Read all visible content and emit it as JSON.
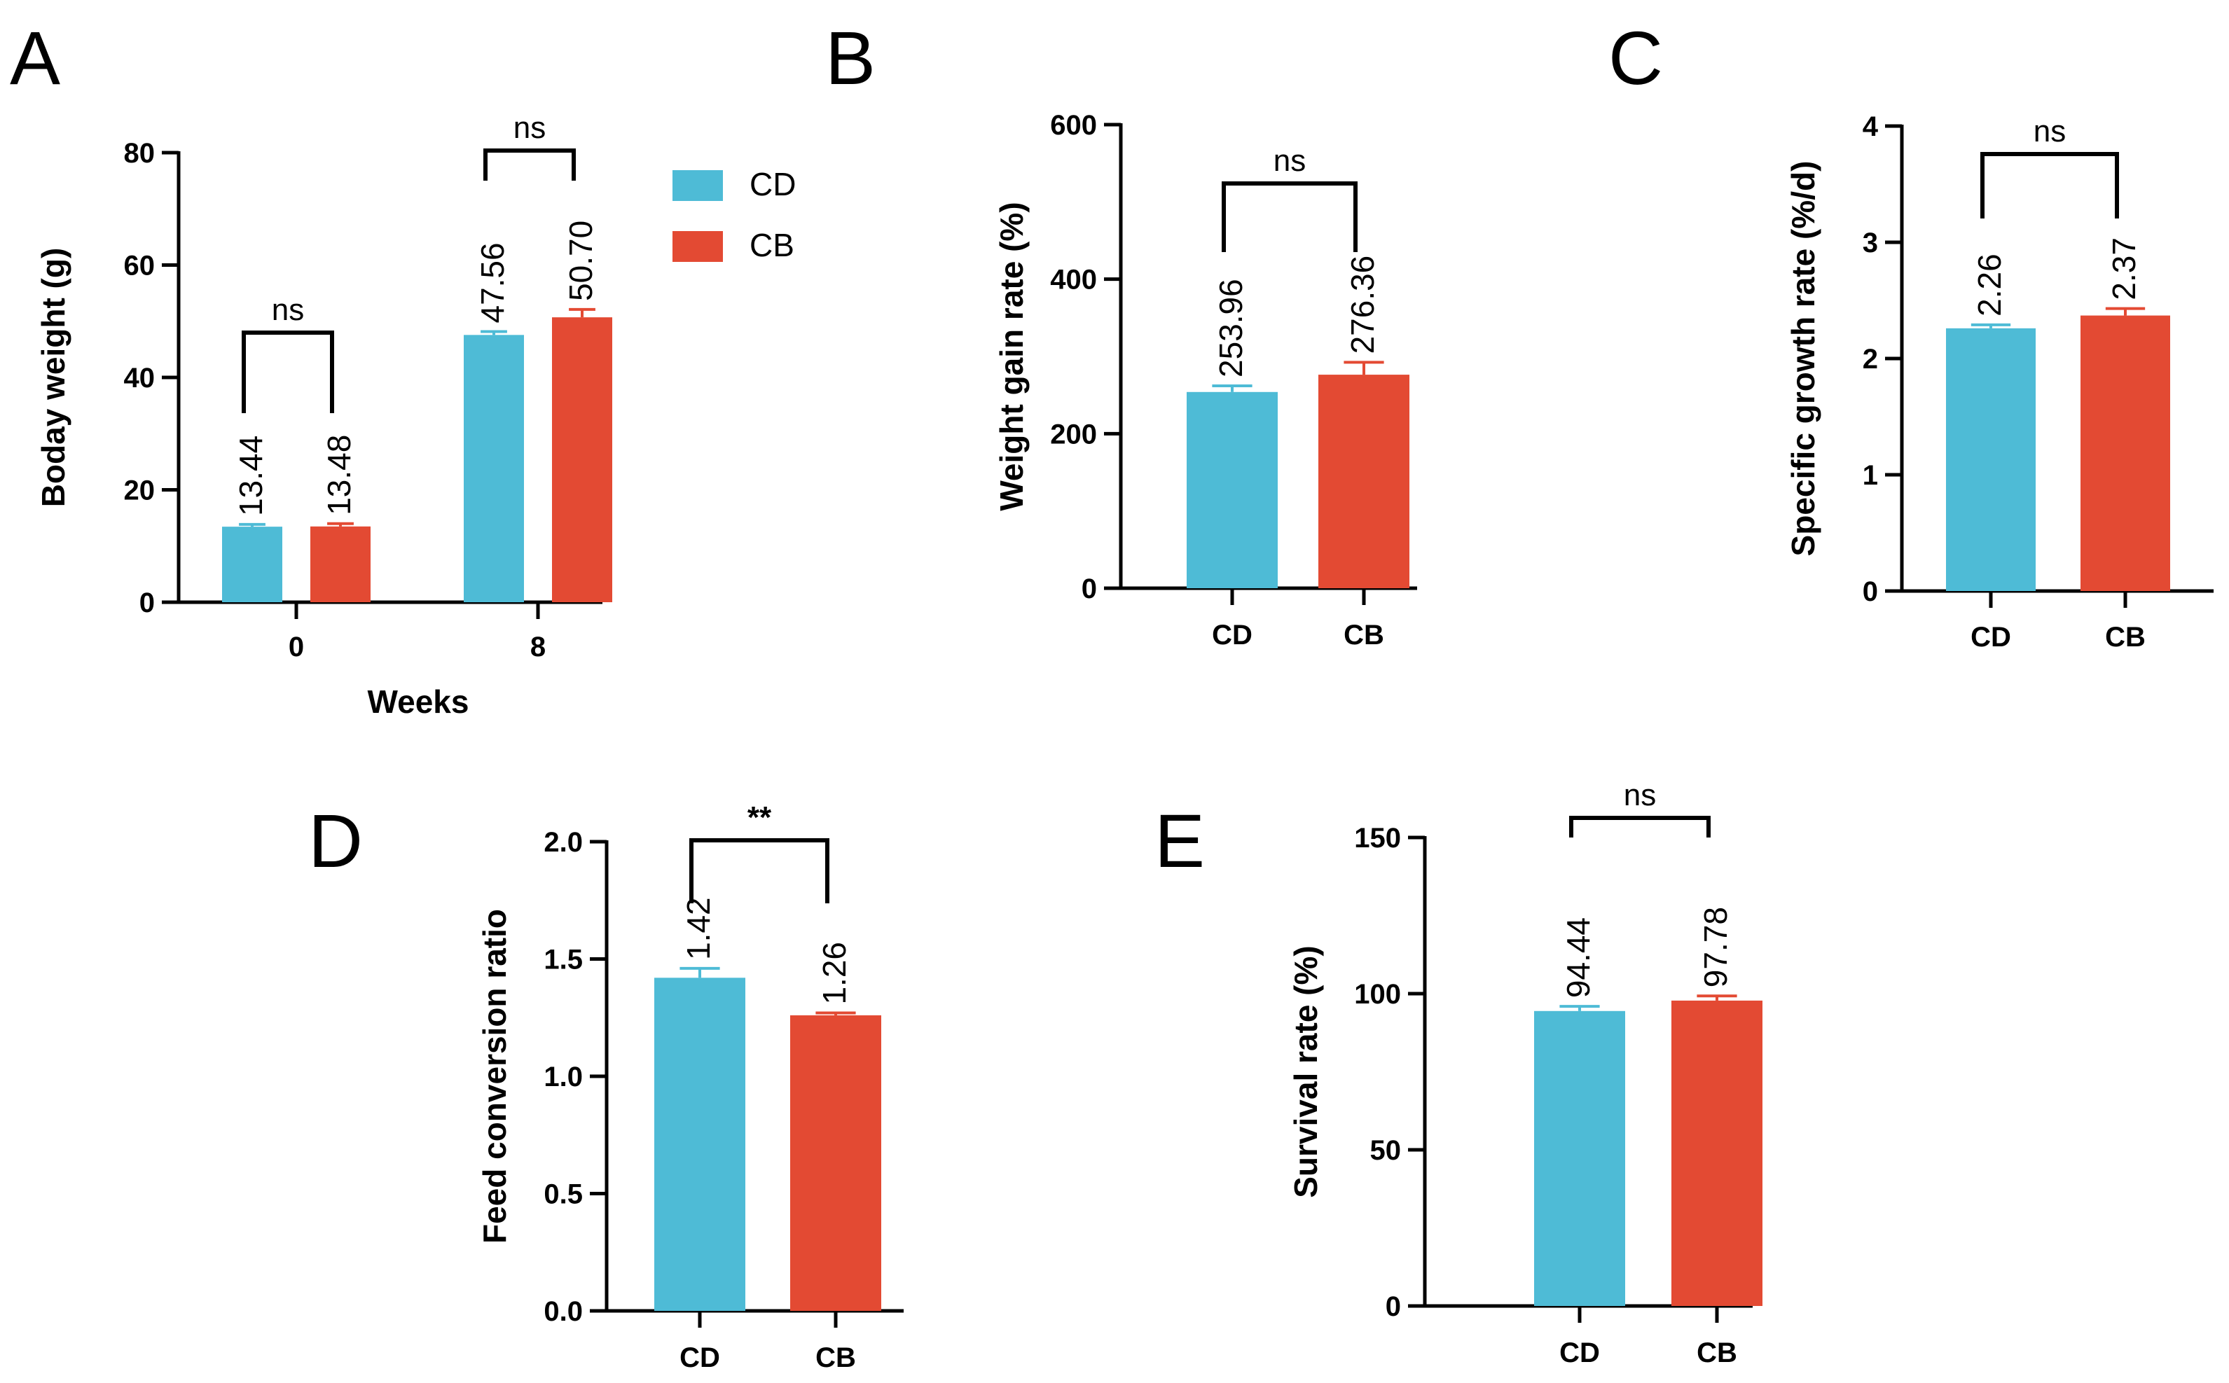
{
  "chart_data": [
    {
      "panel": "A",
      "type": "bar",
      "xlabel": "Weeks",
      "ylabel": "Boday weight (g)",
      "ylim": [
        0,
        80
      ],
      "yticks": [
        0,
        20,
        40,
        60,
        80
      ],
      "categories": [
        "0",
        "8"
      ],
      "series": [
        {
          "name": "CD",
          "values": [
            13.44,
            47.56
          ],
          "labels": [
            "13.44",
            "47.56"
          ],
          "errors": [
            0.4,
            0.6
          ]
        },
        {
          "name": "CB",
          "values": [
            13.48,
            50.7
          ],
          "labels": [
            "13.48",
            "50.70"
          ],
          "errors": [
            0.5,
            1.4
          ]
        }
      ],
      "significance": [
        "ns",
        "ns"
      ],
      "legend": "right"
    },
    {
      "panel": "B",
      "type": "bar",
      "xlabel": "",
      "ylabel": "Weight gain rate (%)",
      "ylim": [
        0,
        600
      ],
      "yticks": [
        0,
        200,
        400,
        600
      ],
      "categories": [
        "CD",
        "CB"
      ],
      "values": [
        253.96,
        276.36
      ],
      "labels": [
        "253.96",
        "276.36"
      ],
      "errors": [
        8,
        16
      ],
      "significance": "ns"
    },
    {
      "panel": "C",
      "type": "bar",
      "xlabel": "",
      "ylabel": "Specific growth rate (%/d)",
      "ylim": [
        0,
        4
      ],
      "yticks": [
        0,
        1,
        2,
        3,
        4
      ],
      "categories": [
        "CD",
        "CB"
      ],
      "values": [
        2.26,
        2.37
      ],
      "labels": [
        "2.26",
        "2.37"
      ],
      "errors": [
        0.03,
        0.06
      ],
      "significance": "ns"
    },
    {
      "panel": "D",
      "type": "bar",
      "xlabel": "",
      "ylabel": "Feed conversion ratio",
      "ylim": [
        0,
        2.0
      ],
      "yticks": [
        "0.0",
        "0.5",
        "1.0",
        "1.5",
        "2.0"
      ],
      "categories": [
        "CD",
        "CB"
      ],
      "values": [
        1.42,
        1.26
      ],
      "labels": [
        "1.42",
        "1.26"
      ],
      "errors": [
        0.04,
        0.01
      ],
      "significance": "**"
    },
    {
      "panel": "E",
      "type": "bar",
      "xlabel": "",
      "ylabel": "Survival rate (%)",
      "ylim": [
        0,
        150
      ],
      "yticks": [
        0,
        50,
        100,
        150
      ],
      "categories": [
        "CD",
        "CB"
      ],
      "values": [
        94.44,
        97.78
      ],
      "labels": [
        "94.44",
        "97.78"
      ],
      "errors": [
        1.5,
        1.5
      ],
      "significance": "ns"
    }
  ],
  "colors": {
    "CD": "#4ebbd6",
    "CB": "#e34a33"
  }
}
